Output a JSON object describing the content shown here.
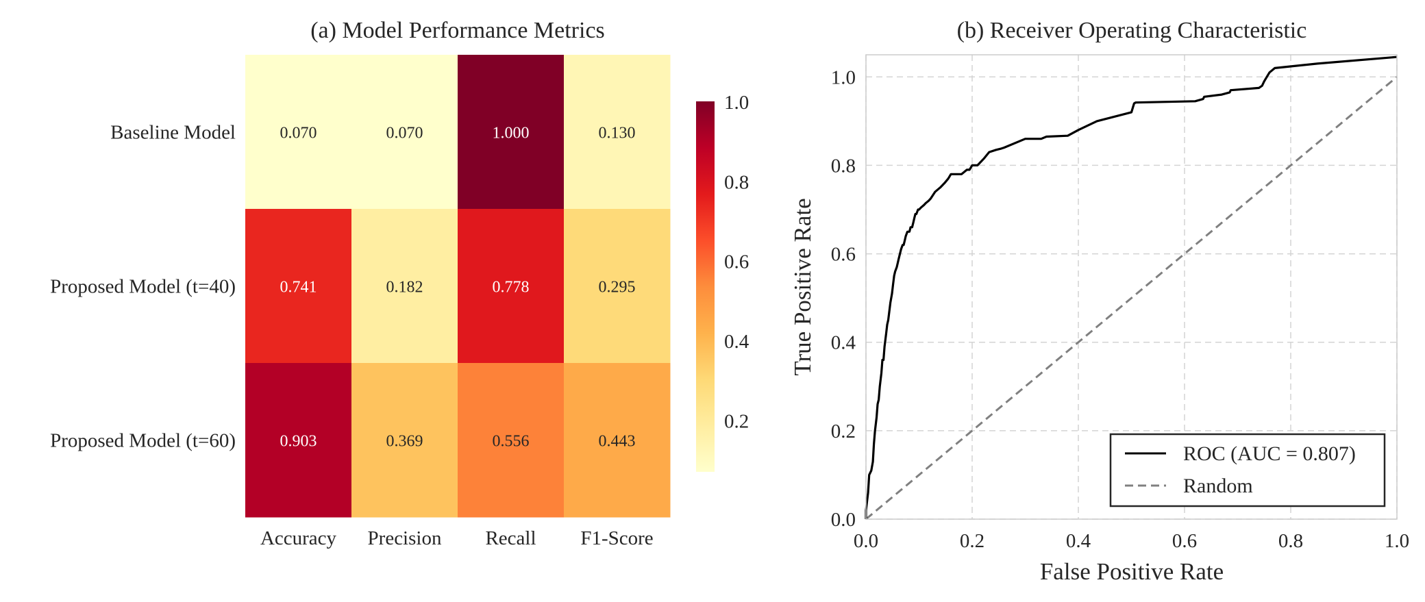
{
  "chart_data": [
    {
      "type": "heatmap",
      "title": "(a) Model Performance Metrics",
      "rows": [
        "Baseline Model",
        "Proposed Model (t=40)",
        "Proposed Model (t=60)"
      ],
      "columns": [
        "Accuracy",
        "Precision",
        "Recall",
        "F1-Score"
      ],
      "values": [
        [
          0.07,
          0.07,
          1.0,
          0.13
        ],
        [
          0.741,
          0.182,
          0.778,
          0.295
        ],
        [
          0.903,
          0.369,
          0.556,
          0.443
        ]
      ],
      "value_labels": [
        [
          "0.070",
          "0.070",
          "1.000",
          "0.130"
        ],
        [
          "0.741",
          "0.182",
          "0.778",
          "0.295"
        ],
        [
          "0.903",
          "0.369",
          "0.556",
          "0.443"
        ]
      ],
      "colormap": "YlOrRd",
      "colorbar": {
        "range": [
          0.07,
          1.0
        ],
        "ticks": [
          0.2,
          0.4,
          0.6,
          0.8,
          1.0
        ],
        "tick_labels": [
          "0.2",
          "0.4",
          "0.6",
          "0.8",
          "1.0"
        ]
      }
    },
    {
      "type": "line",
      "title": "(b) Receiver Operating Characteristic",
      "xlabel": "False Positive Rate",
      "ylabel": "True Positive Rate",
      "xlim": [
        0,
        1
      ],
      "ylim": [
        0,
        1.05
      ],
      "xticks": [
        "0.0",
        "0.2",
        "0.4",
        "0.6",
        "0.8",
        "1.0"
      ],
      "yticks": [
        "0.0",
        "0.2",
        "0.4",
        "0.6",
        "0.8",
        "1.0"
      ],
      "grid": true,
      "legend_position": "bottom-right",
      "series": [
        {
          "name": "ROC (AUC = 0.807)",
          "color": "#000000",
          "style": "solid",
          "x": [
            0.0,
            0.0,
            0.004,
            0.006,
            0.01,
            0.013,
            0.015,
            0.017,
            0.02,
            0.022,
            0.024,
            0.026,
            0.029,
            0.031,
            0.033,
            0.035,
            0.038,
            0.04,
            0.042,
            0.044,
            0.046,
            0.049,
            0.051,
            0.053,
            0.055,
            0.058,
            0.06,
            0.062,
            0.064,
            0.066,
            0.069,
            0.071,
            0.073,
            0.075,
            0.078,
            0.08,
            0.082,
            0.084,
            0.087,
            0.089,
            0.091,
            0.093,
            0.095,
            0.098,
            0.1,
            0.104,
            0.109,
            0.113,
            0.118,
            0.122,
            0.13,
            0.14,
            0.148,
            0.155,
            0.16,
            0.17,
            0.18,
            0.19,
            0.195,
            0.2,
            0.21,
            0.222,
            0.232,
            0.245,
            0.255,
            0.26,
            0.3,
            0.33,
            0.34,
            0.38,
            0.4,
            0.435,
            0.5,
            0.505,
            0.508,
            0.62,
            0.635,
            0.637,
            0.67,
            0.685,
            0.687,
            0.74,
            0.746,
            0.75,
            0.755,
            0.76,
            0.77,
            0.85,
            1.0
          ],
          "y": [
            0.0,
            0.02,
            0.06,
            0.1,
            0.11,
            0.13,
            0.17,
            0.2,
            0.23,
            0.26,
            0.27,
            0.3,
            0.33,
            0.36,
            0.36,
            0.39,
            0.42,
            0.44,
            0.45,
            0.47,
            0.49,
            0.51,
            0.53,
            0.55,
            0.56,
            0.57,
            0.58,
            0.59,
            0.6,
            0.61,
            0.62,
            0.62,
            0.63,
            0.64,
            0.65,
            0.65,
            0.65,
            0.66,
            0.66,
            0.67,
            0.68,
            0.69,
            0.69,
            0.7,
            0.7,
            0.705,
            0.71,
            0.715,
            0.72,
            0.725,
            0.74,
            0.75,
            0.76,
            0.77,
            0.78,
            0.78,
            0.78,
            0.79,
            0.79,
            0.8,
            0.8,
            0.815,
            0.83,
            0.835,
            0.838,
            0.84,
            0.86,
            0.86,
            0.865,
            0.867,
            0.88,
            0.9,
            0.92,
            0.94,
            0.942,
            0.945,
            0.95,
            0.955,
            0.96,
            0.965,
            0.97,
            0.975,
            0.98,
            0.99,
            1.0,
            1.01,
            1.02,
            1.03,
            1.045
          ]
        },
        {
          "name": "Random",
          "color": "#808080",
          "style": "dashed",
          "x": [
            0,
            1
          ],
          "y": [
            0,
            1
          ]
        }
      ]
    }
  ]
}
